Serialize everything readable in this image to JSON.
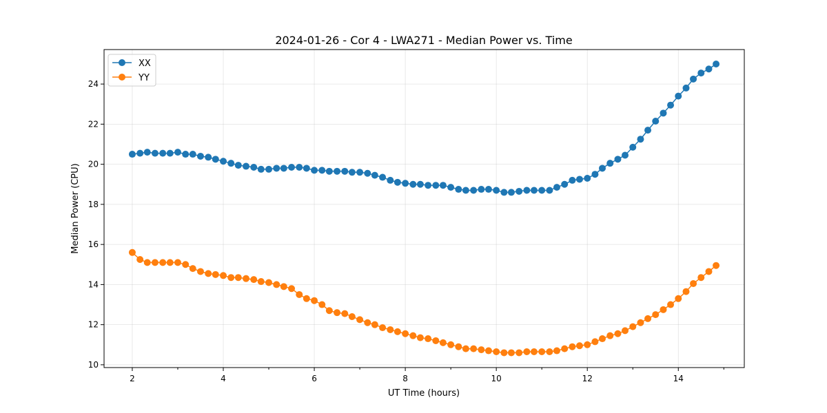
{
  "chart_data": {
    "type": "line",
    "title": "2024-01-26 - Cor 4 - LWA271 - Median Power vs. Time",
    "xlabel": "UT Time (hours)",
    "ylabel": "Median Power (CPU)",
    "xlim": [
      1.38,
      15.45
    ],
    "ylim": [
      9.86,
      25.72
    ],
    "xticks": [
      2,
      4,
      6,
      8,
      10,
      12,
      14
    ],
    "xticks_minor": [
      3,
      5,
      7,
      9,
      11,
      13,
      15
    ],
    "yticks": [
      10,
      12,
      14,
      16,
      18,
      20,
      22,
      24
    ],
    "grid": true,
    "legend_position": "top-left",
    "x": [
      2,
      2.17,
      2.33,
      2.5,
      2.67,
      2.83,
      3,
      3.17,
      3.33,
      3.5,
      3.67,
      3.83,
      4,
      4.17,
      4.33,
      4.5,
      4.67,
      4.83,
      5,
      5.17,
      5.33,
      5.5,
      5.67,
      5.83,
      6,
      6.17,
      6.33,
      6.5,
      6.67,
      6.83,
      7,
      7.17,
      7.33,
      7.5,
      7.67,
      7.83,
      8,
      8.17,
      8.33,
      8.5,
      8.67,
      8.83,
      9,
      9.17,
      9.33,
      9.5,
      9.67,
      9.83,
      10,
      10.17,
      10.33,
      10.5,
      10.67,
      10.83,
      11,
      11.17,
      11.33,
      11.5,
      11.67,
      11.83,
      12,
      12.17,
      12.33,
      12.5,
      12.67,
      12.83,
      13,
      13.17,
      13.33,
      13.5,
      13.67,
      13.83,
      14,
      14.17,
      14.33,
      14.5,
      14.67,
      14.83
    ],
    "series": [
      {
        "name": "XX",
        "color": "#1f77b4",
        "marker": "circle",
        "values": [
          20.5,
          20.55,
          20.6,
          20.55,
          20.55,
          20.55,
          20.6,
          20.5,
          20.5,
          20.4,
          20.35,
          20.25,
          20.15,
          20.05,
          19.95,
          19.9,
          19.85,
          19.75,
          19.75,
          19.8,
          19.8,
          19.85,
          19.85,
          19.8,
          19.7,
          19.7,
          19.65,
          19.65,
          19.65,
          19.6,
          19.6,
          19.55,
          19.45,
          19.35,
          19.2,
          19.1,
          19.05,
          19.0,
          19.0,
          18.95,
          18.95,
          18.95,
          18.85,
          18.75,
          18.7,
          18.7,
          18.75,
          18.75,
          18.7,
          18.6,
          18.6,
          18.65,
          18.7,
          18.7,
          18.7,
          18.7,
          18.85,
          19.0,
          19.2,
          19.25,
          19.3,
          19.5,
          19.8,
          20.05,
          20.25,
          20.45,
          20.85,
          21.25,
          21.7,
          22.15,
          22.55,
          22.95,
          23.4,
          23.8,
          24.25,
          24.55,
          24.75,
          25.0
        ]
      },
      {
        "name": "YY",
        "color": "#ff7f0e",
        "marker": "circle",
        "values": [
          15.6,
          15.25,
          15.1,
          15.1,
          15.1,
          15.1,
          15.1,
          15.0,
          14.8,
          14.65,
          14.55,
          14.5,
          14.45,
          14.35,
          14.35,
          14.3,
          14.25,
          14.15,
          14.1,
          14.0,
          13.9,
          13.8,
          13.5,
          13.3,
          13.2,
          13.0,
          12.7,
          12.6,
          12.55,
          12.4,
          12.25,
          12.1,
          12.0,
          11.85,
          11.75,
          11.65,
          11.55,
          11.45,
          11.35,
          11.3,
          11.2,
          11.1,
          11.0,
          10.9,
          10.8,
          10.8,
          10.75,
          10.7,
          10.65,
          10.6,
          10.6,
          10.6,
          10.65,
          10.65,
          10.65,
          10.65,
          10.7,
          10.8,
          10.9,
          10.95,
          11.0,
          11.15,
          11.3,
          11.45,
          11.55,
          11.7,
          11.9,
          12.1,
          12.3,
          12.5,
          12.75,
          13.0,
          13.3,
          13.65,
          14.05,
          14.35,
          14.65,
          14.95
        ]
      }
    ]
  }
}
